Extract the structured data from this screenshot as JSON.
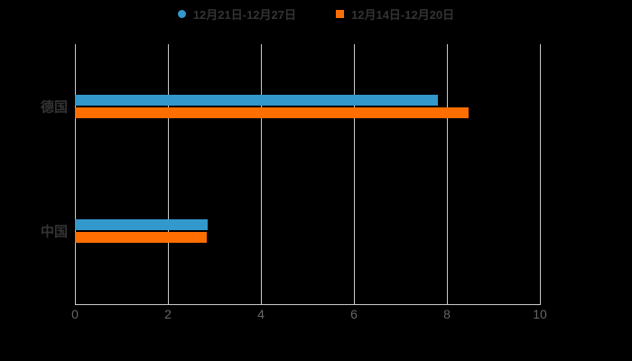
{
  "colors": {
    "background": "#000000",
    "grid_line": "#c9c9c9",
    "axis_line": "#c9c9c9",
    "x_tick_label": "#666666",
    "y_tick_label": "#333333",
    "legend_text": "#333333",
    "series_blue": "#3398cc",
    "series_orange": "#ff6e00"
  },
  "legend": {
    "items": [
      {
        "label": "12月21日-12月27日",
        "color": "#3398cc",
        "marker": "circle"
      },
      {
        "label": "12月14日-12月20日",
        "color": "#ff6e00",
        "marker": "square"
      }
    ]
  },
  "chart_data": {
    "type": "bar",
    "orientation": "horizontal",
    "title": "",
    "xlabel": "",
    "ylabel": "",
    "categories": [
      "德国",
      "中国"
    ],
    "series": [
      {
        "name": "12月21日-12月27日",
        "color": "#3398cc",
        "values": [
          7.8,
          2.85
        ]
      },
      {
        "name": "12月14日-12月20日",
        "color": "#ff6e00",
        "values": [
          8.47,
          2.83
        ]
      }
    ],
    "xlim": [
      0,
      10
    ],
    "x_ticks": [
      "0",
      "2",
      "4",
      "6",
      "8",
      "10"
    ],
    "grid": true,
    "legend_position": "top"
  }
}
